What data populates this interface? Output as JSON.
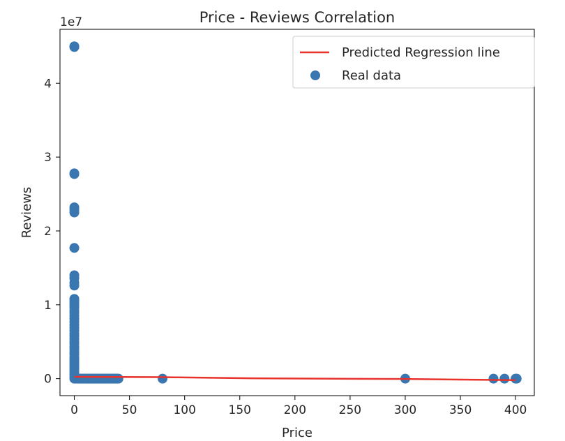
{
  "chart_data": {
    "type": "scatter",
    "title": "Price - Reviews Correlation",
    "xlabel": "Price",
    "ylabel": "Reviews",
    "y_offset_text": "1e7",
    "xlim": [
      -13,
      417
    ],
    "ylim": [
      -2300000,
      47300000
    ],
    "xticks": [
      0,
      50,
      100,
      150,
      200,
      250,
      300,
      350,
      400
    ],
    "yticks": [
      0,
      10000000,
      20000000,
      30000000,
      40000000
    ],
    "ytick_labels": [
      "0",
      "1",
      "2",
      "3",
      "4"
    ],
    "grid": false,
    "legend_position": "top-right",
    "colors": {
      "points": "#3a76b0",
      "line": "#e8322c",
      "text": "#262626",
      "frame": "#000000"
    },
    "series": [
      {
        "name": "Predicted Regression line",
        "kind": "line",
        "x": [
          0,
          80,
          160,
          300,
          400
        ],
        "y": [
          250000,
          200000,
          50000,
          -50000,
          -200000
        ]
      },
      {
        "name": "Real data",
        "kind": "scatter",
        "points": [
          [
            0,
            45000000
          ],
          [
            0,
            44900000
          ],
          [
            0,
            27800000
          ],
          [
            0,
            27700000
          ],
          [
            0,
            23200000
          ],
          [
            0,
            22900000
          ],
          [
            0,
            22500000
          ],
          [
            0,
            17700000
          ],
          [
            0,
            14000000
          ],
          [
            0,
            13600000
          ],
          [
            0,
            13000000
          ],
          [
            0,
            12600000
          ],
          [
            0,
            10800000
          ],
          [
            0,
            10500000
          ],
          [
            0,
            10200000
          ],
          [
            0,
            9900000
          ],
          [
            0,
            9600000
          ],
          [
            0,
            9200000
          ],
          [
            0,
            8900000
          ],
          [
            0,
            8500000
          ],
          [
            0,
            8100000
          ],
          [
            0,
            7700000
          ],
          [
            0,
            7300000
          ],
          [
            0,
            6900000
          ],
          [
            0,
            6500000
          ],
          [
            0,
            6100000
          ],
          [
            0,
            5800000
          ],
          [
            0,
            5400000
          ],
          [
            0,
            5000000
          ],
          [
            0,
            4700000
          ],
          [
            0,
            4300000
          ],
          [
            0,
            4000000
          ],
          [
            0,
            3600000
          ],
          [
            0,
            3300000
          ],
          [
            0,
            2900000
          ],
          [
            0,
            2600000
          ],
          [
            0,
            2300000
          ],
          [
            0,
            2000000
          ],
          [
            0,
            1700000
          ],
          [
            0,
            1400000
          ],
          [
            0,
            1100000
          ],
          [
            0,
            800000
          ],
          [
            0,
            500000
          ],
          [
            0,
            200000
          ],
          [
            0,
            0
          ],
          [
            1,
            0
          ],
          [
            2,
            0
          ],
          [
            3,
            0
          ],
          [
            4,
            0
          ],
          [
            5,
            0
          ],
          [
            6,
            0
          ],
          [
            7,
            0
          ],
          [
            8,
            0
          ],
          [
            9,
            0
          ],
          [
            10,
            0
          ],
          [
            11,
            0
          ],
          [
            12,
            0
          ],
          [
            13,
            0
          ],
          [
            14,
            0
          ],
          [
            15,
            0
          ],
          [
            16,
            0
          ],
          [
            17,
            0
          ],
          [
            18,
            0
          ],
          [
            19,
            0
          ],
          [
            20,
            0
          ],
          [
            21,
            0
          ],
          [
            22,
            0
          ],
          [
            23,
            0
          ],
          [
            24,
            0
          ],
          [
            25,
            0
          ],
          [
            26,
            0
          ],
          [
            27,
            0
          ],
          [
            28,
            0
          ],
          [
            29,
            0
          ],
          [
            30,
            0
          ],
          [
            31,
            0
          ],
          [
            32,
            0
          ],
          [
            33,
            0
          ],
          [
            34,
            0
          ],
          [
            35,
            0
          ],
          [
            36,
            0
          ],
          [
            37,
            0
          ],
          [
            38,
            0
          ],
          [
            39,
            0
          ],
          [
            40,
            0
          ],
          [
            80,
            0
          ],
          [
            300,
            0
          ],
          [
            380,
            0
          ],
          [
            390,
            0
          ],
          [
            400,
            0
          ],
          [
            401,
            0
          ]
        ]
      }
    ]
  }
}
